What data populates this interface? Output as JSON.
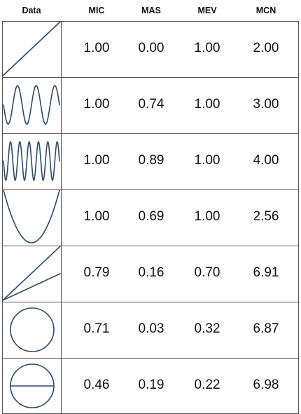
{
  "columns": [
    "Data",
    "MIC",
    "MAS",
    "MEV",
    "MCN"
  ],
  "line_color": "#2e4a6b",
  "rows": [
    {
      "shape": "line",
      "values": [
        "1.00",
        "0.00",
        "1.00",
        "2.00"
      ]
    },
    {
      "shape": "sine-low-frequency",
      "values": [
        "1.00",
        "0.74",
        "1.00",
        "3.00"
      ]
    },
    {
      "shape": "sine-high-frequency",
      "values": [
        "1.00",
        "0.89",
        "1.00",
        "4.00"
      ]
    },
    {
      "shape": "parabola",
      "values": [
        "1.00",
        "0.69",
        "1.00",
        "2.56"
      ]
    },
    {
      "shape": "two-lines",
      "values": [
        "0.79",
        "0.16",
        "0.70",
        "6.91"
      ]
    },
    {
      "shape": "circle",
      "values": [
        "0.71",
        "0.03",
        "0.32",
        "6.87"
      ]
    },
    {
      "shape": "circle-with-diameter",
      "values": [
        "0.46",
        "0.19",
        "0.22",
        "6.98"
      ]
    }
  ],
  "chart_data": {
    "type": "table",
    "columns": [
      "Data",
      "MIC",
      "MAS",
      "MEV",
      "MCN"
    ],
    "rows": [
      [
        "line",
        1.0,
        0.0,
        1.0,
        2.0
      ],
      [
        "sine-low-frequency",
        1.0,
        0.74,
        1.0,
        3.0
      ],
      [
        "sine-high-frequency",
        1.0,
        0.89,
        1.0,
        4.0
      ],
      [
        "parabola",
        1.0,
        0.69,
        1.0,
        2.56
      ],
      [
        "two-lines",
        0.79,
        0.16,
        0.7,
        6.91
      ],
      [
        "circle",
        0.71,
        0.03,
        0.32,
        6.87
      ],
      [
        "circle-with-diameter",
        0.46,
        0.19,
        0.22,
        6.98
      ]
    ]
  }
}
